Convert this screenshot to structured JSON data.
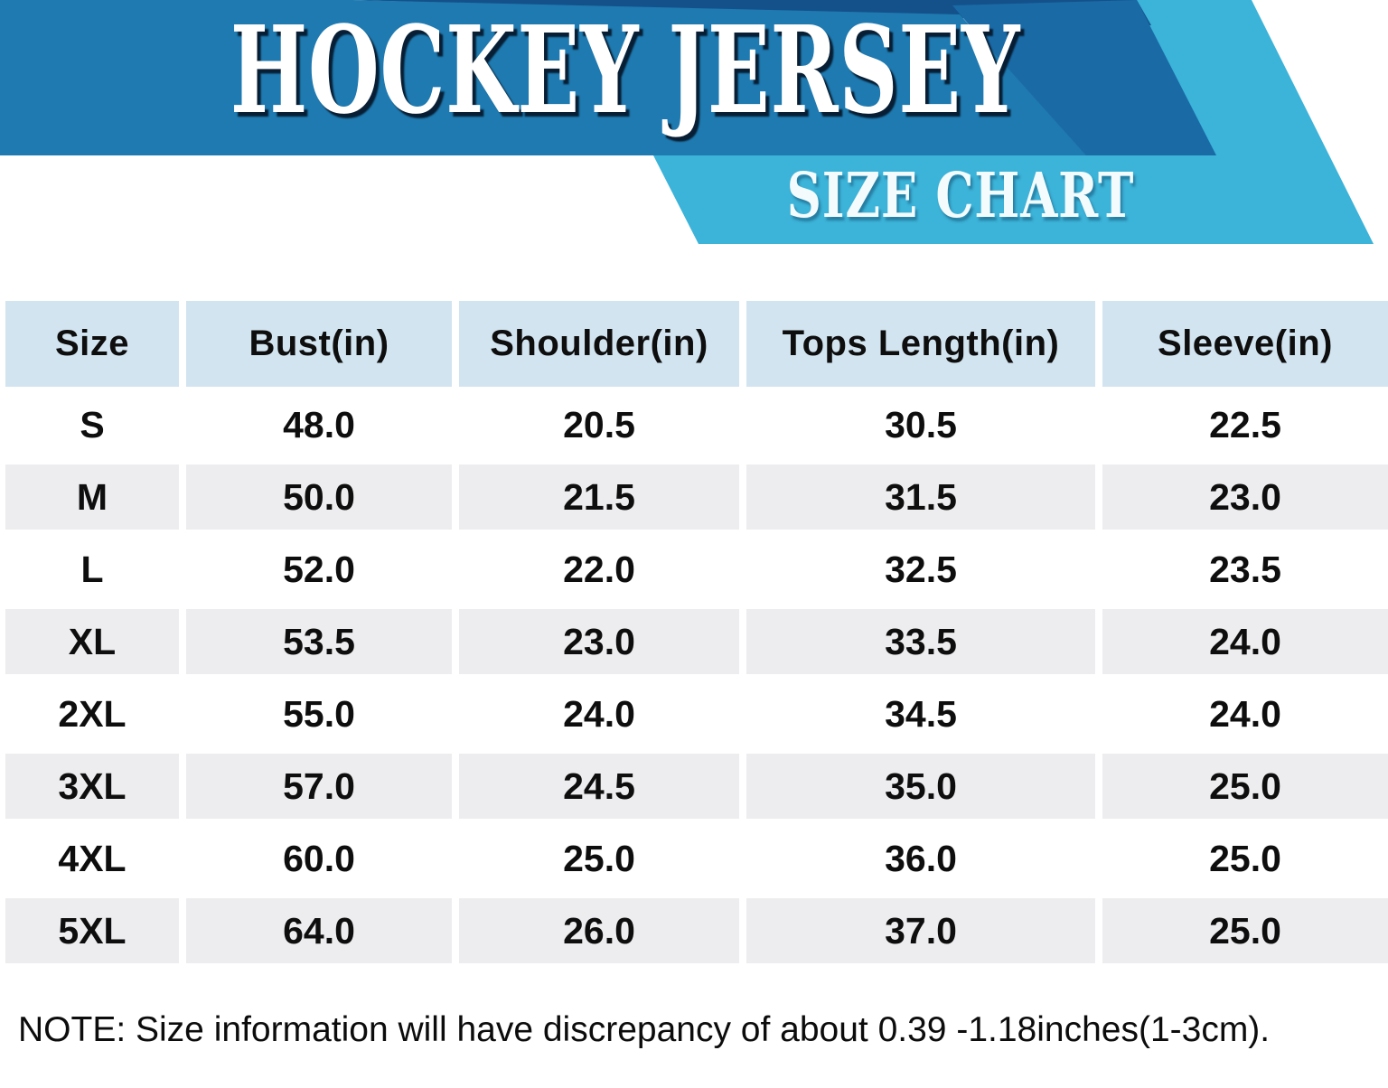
{
  "banner": {
    "title": "HOCKEY JERSEY",
    "subtitle": "SIZE CHART",
    "colors": {
      "band": "#1e7ab0",
      "wedge": "#1a6aa6",
      "navy": "#14518a",
      "cyan": "#3cb3d8"
    }
  },
  "table": {
    "columns": [
      "Size",
      "Bust(in)",
      "Shoulder(in)",
      "Tops Length(in)",
      "Sleeve(in)"
    ],
    "rows": [
      [
        "S",
        "48.0",
        "20.5",
        "30.5",
        "22.5"
      ],
      [
        "M",
        "50.0",
        "21.5",
        "31.5",
        "23.0"
      ],
      [
        "L",
        "52.0",
        "22.0",
        "32.5",
        "23.5"
      ],
      [
        "XL",
        "53.5",
        "23.0",
        "33.5",
        "24.0"
      ],
      [
        "2XL",
        "55.0",
        "24.0",
        "34.5",
        "24.0"
      ],
      [
        "3XL",
        "57.0",
        "24.5",
        "35.0",
        "25.0"
      ],
      [
        "4XL",
        "60.0",
        "25.0",
        "36.0",
        "25.0"
      ],
      [
        "5XL",
        "64.0",
        "26.0",
        "37.0",
        "25.0"
      ]
    ],
    "colors": {
      "header_bg": "#d2e4f0",
      "row_alt_bg": "#ededef"
    }
  },
  "note": "NOTE: Size information will have discrepancy of about 0.39 -1.18inches(1-3cm).",
  "chart_data": {
    "type": "table",
    "title": "HOCKEY JERSEY SIZE CHART",
    "columns": [
      "Size",
      "Bust(in)",
      "Shoulder(in)",
      "Tops Length(in)",
      "Sleeve(in)"
    ],
    "rows": [
      [
        "S",
        48.0,
        20.5,
        30.5,
        22.5
      ],
      [
        "M",
        50.0,
        21.5,
        31.5,
        23.0
      ],
      [
        "L",
        52.0,
        22.0,
        32.5,
        23.5
      ],
      [
        "XL",
        53.5,
        23.0,
        33.5,
        24.0
      ],
      [
        "2XL",
        55.0,
        24.0,
        34.5,
        24.0
      ],
      [
        "3XL",
        57.0,
        24.5,
        35.0,
        25.0
      ],
      [
        "4XL",
        60.0,
        25.0,
        36.0,
        25.0
      ],
      [
        "5XL",
        64.0,
        26.0,
        37.0,
        25.0
      ]
    ],
    "footnote": "NOTE: Size information will have discrepancy of about 0.39 -1.18inches(1-3cm)."
  }
}
